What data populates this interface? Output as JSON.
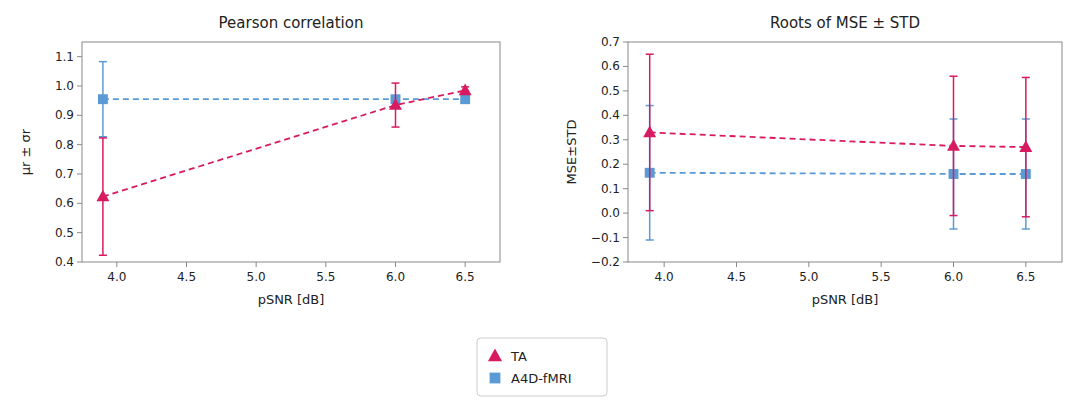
{
  "chart_data": [
    {
      "type": "line",
      "title": "Pearson correlation",
      "x_label": "pSNR [dB]",
      "y_label": "μr ± σr",
      "x": [
        3.9,
        6.0,
        6.5
      ],
      "xlim": [
        3.75,
        6.75
      ],
      "xticks": [
        {
          "value": 4.0,
          "label": "4.0"
        },
        4.5,
        {
          "value": 5.0,
          "label": "5.0"
        },
        5.5,
        {
          "value": 6.0,
          "label": "6.0"
        },
        6.5
      ],
      "ylim": [
        0.4,
        1.15
      ],
      "yticks": [
        0.4,
        0.5,
        0.6,
        0.7,
        0.8,
        0.9,
        {
          "value": 1.0,
          "label": "1.0"
        },
        1.1
      ],
      "grid": false,
      "legend": "lower center",
      "series": [
        {
          "name": "TA",
          "color": "#d81b60",
          "marker": "triangle",
          "line_style": "dashed",
          "values": [
            0.623,
            0.935,
            0.985
          ],
          "errors": [
            0.2,
            0.075,
            0.012
          ]
        },
        {
          "name": "A4D-fMRI",
          "color": "#5b9bd5",
          "marker": "square",
          "line_style": "dashed",
          "values": [
            0.955,
            0.955,
            0.955
          ],
          "errors": [
            0.128,
            0.003,
            0.003
          ]
        }
      ]
    },
    {
      "type": "line",
      "title": "Roots of MSE ± STD",
      "x_label": "pSNR [dB]",
      "y_label": "MSE±STD",
      "x": [
        3.9,
        6.0,
        6.5
      ],
      "xlim": [
        3.75,
        6.75
      ],
      "xticks": [
        {
          "value": 4.0,
          "label": "4.0"
        },
        4.5,
        {
          "value": 5.0,
          "label": "5.0"
        },
        5.5,
        {
          "value": 6.0,
          "label": "6.0"
        },
        6.5
      ],
      "ylim": [
        -0.2,
        0.7
      ],
      "yticks": [
        {
          "value": -0.2,
          "label": "−0.2"
        },
        {
          "value": -0.1,
          "label": "−0.1"
        },
        {
          "value": 0.0,
          "label": "0.0"
        },
        0.1,
        0.2,
        0.3,
        0.4,
        0.5,
        0.6,
        0.7
      ],
      "grid": false,
      "series": [
        {
          "name": "TA",
          "color": "#d81b60",
          "marker": "triangle",
          "line_style": "dashed",
          "values": [
            0.33,
            0.275,
            0.27
          ],
          "errors": [
            0.32,
            0.285,
            0.285
          ]
        },
        {
          "name": "A4D-fMRI",
          "color": "#5b9bd5",
          "marker": "square",
          "line_style": "dashed",
          "values": [
            0.165,
            0.16,
            0.16
          ],
          "errors": [
            0.275,
            0.225,
            0.225
          ]
        }
      ]
    }
  ]
}
